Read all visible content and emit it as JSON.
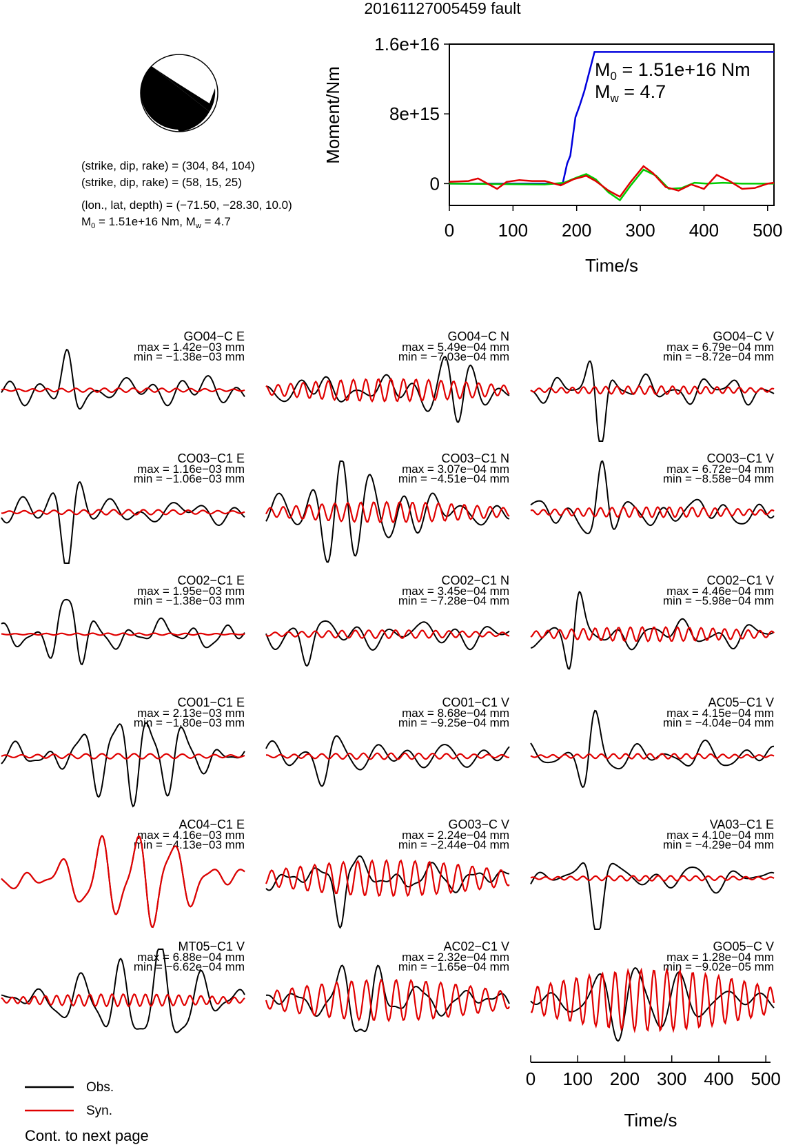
{
  "title": "20161127005459 fault",
  "mechanism": {
    "line1": "(strike, dip, rake) = (304, 84, 104)",
    "line2": "(strike, dip, rake) = (58, 15, 25)",
    "line3": "(lon., lat, depth) = (−71.50, −28.30, 10.0)",
    "m0_main": "M",
    "m0_sub": "0",
    "m0_rest": " = 1.51e+16 Nm, M",
    "mw_sub": "w",
    "mw_rest": " = 4.7"
  },
  "legend": {
    "obs": "Obs.",
    "syn": "Syn."
  },
  "continuation": "Cont. to next page",
  "colors": {
    "obs": "#000000",
    "syn": "#e00000",
    "moment": "#0000dd",
    "stf_green": "#00cc00"
  },
  "chart_data": [
    {
      "type": "line",
      "xlabel": "Time/s",
      "ylabel": "Moment/Nm",
      "xlim": [
        0,
        510
      ],
      "ylim": [
        -2500000000000000.0,
        1.6e+16
      ],
      "xticks": [
        "0",
        "100",
        "200",
        "300",
        "400",
        "500"
      ],
      "xtick_values": [
        0,
        100,
        200,
        300,
        400,
        500
      ],
      "yticks": [
        "0",
        "8e+15",
        "1.6e+16"
      ],
      "ytick_values": [
        0,
        8000000000000000.0,
        1.6e+16
      ],
      "annotation": {
        "m0_sym": "M",
        "m0_sub": "0",
        "m0_val": " = 1.51e+16 Nm",
        "mw_sym": "M",
        "mw_sub": "w",
        "mw_val": " = 4.7"
      },
      "series": [
        {
          "color": "#0000dd",
          "x": [
            0,
            178,
            185,
            190,
            198,
            205,
            212,
            228,
            510
          ],
          "y": [
            0,
            0,
            2300000000000000.0,
            3200000000000000.0,
            7600000000000000.0,
            9000000000000000.0,
            1.06e+16,
            1.51e+16,
            1.51e+16
          ]
        },
        {
          "color": "#00cc00",
          "x": [
            0,
            150,
            180,
            200,
            215,
            230,
            250,
            268,
            285,
            305,
            325,
            345,
            365,
            385,
            405,
            430,
            460,
            510
          ],
          "y": [
            0,
            -100000000000000.0,
            100000000000000.0,
            700000000000000.0,
            1100000000000000.0,
            500000000000000.0,
            -1000000000000000.0,
            -1900000000000000.0,
            -200000000000000.0,
            1600000000000000.0,
            900000000000000.0,
            -600000000000000.0,
            -500000000000000.0,
            100000000000000.0,
            0.0,
            100000000000000.0,
            0.0,
            0.0
          ]
        },
        {
          "color": "#e00000",
          "x": [
            0,
            30,
            45,
            60,
            75,
            90,
            110,
            130,
            150,
            175,
            195,
            215,
            230,
            250,
            268,
            285,
            305,
            320,
            340,
            360,
            380,
            400,
            420,
            440,
            460,
            480,
            500,
            510
          ],
          "y": [
            200000000000000.0,
            300000000000000.0,
            600000000000000.0,
            0.0,
            -600000000000000.0,
            200000000000000.0,
            400000000000000.0,
            300000000000000.0,
            300000000000000.0,
            -200000000000000.0,
            500000000000000.0,
            900000000000000.0,
            300000000000000.0,
            -800000000000000.0,
            -1500000000000000.0,
            200000000000000.0,
            2000000000000000.0,
            1200000000000000.0,
            -400000000000000.0,
            -800000000000000.0,
            -100000000000000.0,
            -600000000000000.0,
            1000000000000000.0,
            300000000000000.0,
            -600000000000000.0,
            -500000000000000.0,
            0.0,
            100000000000000.0
          ]
        }
      ]
    },
    {
      "type": "line",
      "xlabel": "Time/s",
      "xlim": [
        0,
        510
      ],
      "xticks": [
        "0",
        "100",
        "200",
        "300",
        "400",
        "500"
      ],
      "xtick_values": [
        0,
        100,
        200,
        300,
        400,
        500
      ],
      "traces": [
        {
          "name": "GO04−C E",
          "max": "max = 1.42e−03 mm",
          "min": "min = −1.38e−03 mm",
          "obs_amp": 1.0,
          "syn_amp": 0.04,
          "obs_center": 0.28,
          "obs_width": 0.05
        },
        {
          "name": "GO04−C N",
          "max": "max = 5.49e−04 mm",
          "min": "min = −7.03e−04 mm",
          "obs_amp": 1.0,
          "syn_amp": 0.22,
          "obs_center": 0.75,
          "obs_width": 0.08
        },
        {
          "name": "GO04−C V",
          "max": "max = 6.79e−04 mm",
          "min": "min = −8.72e−04 mm",
          "obs_amp": 1.0,
          "syn_amp": 0.08,
          "obs_center": 0.28,
          "obs_width": 0.05
        },
        {
          "name": "CO03−C1 E",
          "max": "max = 1.16e−03 mm",
          "min": "min = −1.06e−03 mm",
          "obs_amp": 1.0,
          "syn_amp": 0.05,
          "obs_center": 0.28,
          "obs_width": 0.06
        },
        {
          "name": "CO03−C1 N",
          "max": "max = 3.07e−04 mm",
          "min": "min = −4.51e−04 mm",
          "obs_amp": 1.0,
          "syn_amp": 0.2,
          "obs_center": 0.35,
          "obs_width": 0.22
        },
        {
          "name": "CO03−C1 V",
          "max": "max = 6.72e−04 mm",
          "min": "min = −8.58e−04 mm",
          "obs_amp": 1.0,
          "syn_amp": 0.1,
          "obs_center": 0.28,
          "obs_width": 0.06
        },
        {
          "name": "CO02−C1 E",
          "max": "max = 1.95e−03 mm",
          "min": "min = −1.38e−03 mm",
          "obs_amp": 1.0,
          "syn_amp": 0.02,
          "obs_center": 0.28,
          "obs_width": 0.07
        },
        {
          "name": "CO02−C1 N",
          "max": "max = 3.45e−04 mm",
          "min": "min = −7.28e−04 mm",
          "obs_amp": 1.0,
          "syn_amp": 0.08,
          "obs_center": 0.17,
          "obs_width": 0.04
        },
        {
          "name": "CO02−C1 V",
          "max": "max = 4.46e−04 mm",
          "min": "min = −5.98e−04 mm",
          "obs_amp": 1.0,
          "syn_amp": 0.14,
          "obs_center": 0.18,
          "obs_width": 0.04
        },
        {
          "name": "CO01−C1 E",
          "max": "max = 2.13e−03 mm",
          "min": "min = −1.80e−03 mm",
          "obs_amp": 1.0,
          "syn_amp": 0.05,
          "obs_center": 0.55,
          "obs_width": 0.2
        },
        {
          "name": "CO01−C1 V",
          "max": "max = 8.68e−04 mm",
          "min": "min = −9.25e−04 mm",
          "obs_amp": 1.0,
          "syn_amp": 0.06,
          "obs_center": 0.25,
          "obs_width": 0.05
        },
        {
          "name": "AC05−C1 V",
          "max": "max = 4.15e−04 mm",
          "min": "min = −4.04e−04 mm",
          "obs_amp": 1.0,
          "syn_amp": 0.05,
          "obs_center": 0.25,
          "obs_width": 0.05
        },
        {
          "name": "AC04−C1 E",
          "max": "max = 4.16e−03 mm",
          "min": "min = −4.13e−03 mm",
          "obs_amp": 1.0,
          "syn_amp": 1.0,
          "obs_center": 0.55,
          "obs_width": 0.22
        },
        {
          "name": "GO03−C V",
          "max": "max = 2.24e−04 mm",
          "min": "min = −2.44e−04 mm",
          "obs_amp": 1.0,
          "syn_amp": 0.35,
          "obs_center": 0.33,
          "obs_width": 0.05
        },
        {
          "name": "VA03−C1 E",
          "max": "max = 4.10e−04 mm",
          "min": "min = −4.29e−04 mm",
          "obs_amp": 1.0,
          "syn_amp": 0.05,
          "obs_center": 0.27,
          "obs_width": 0.05
        },
        {
          "name": "MT05−C1 V",
          "max": "max = 6.88e−04 mm",
          "min": "min = −6.62e−04 mm",
          "obs_amp": 1.0,
          "syn_amp": 0.12,
          "obs_center": 0.6,
          "obs_width": 0.25
        },
        {
          "name": "AC02−C1 V",
          "max": "max = 2.32e−04 mm",
          "min": "min = −1.65e−04 mm",
          "obs_amp": 1.0,
          "syn_amp": 0.4,
          "obs_center": 0.4,
          "obs_width": 0.1
        },
        {
          "name": "GO05−C V",
          "max": "max = 1.28e−04 mm",
          "min": "min = −9.02e−05 mm",
          "obs_amp": 1.0,
          "syn_amp": 0.6,
          "obs_center": 0.45,
          "obs_width": 0.15
        }
      ]
    }
  ]
}
